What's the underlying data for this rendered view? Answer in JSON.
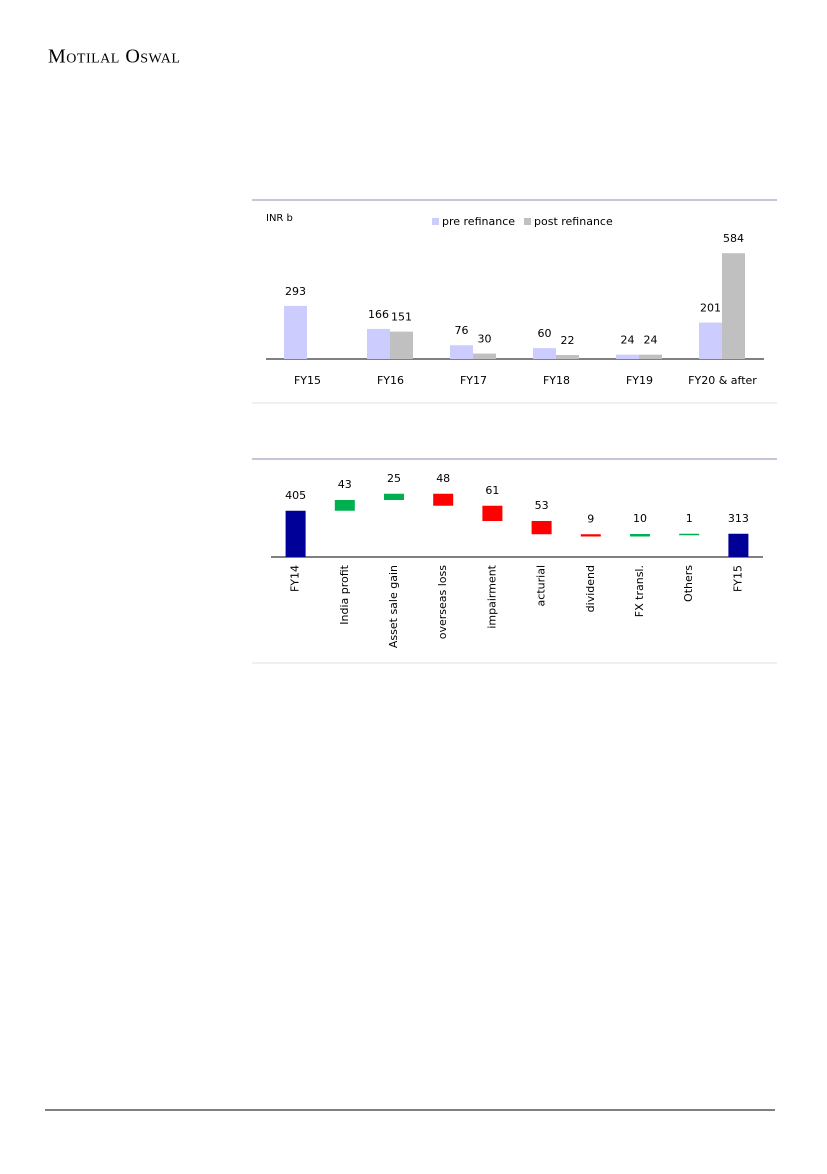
{
  "header": {
    "brand": "Motilal Oswal"
  },
  "chart_data": [
    {
      "type": "bar",
      "unit_label": "INR b",
      "categories": [
        "FY15",
        "FY16",
        "FY17",
        "FY18",
        "FY19",
        "FY20 & after"
      ],
      "series": [
        {
          "name": "pre refinance",
          "color": "#ccccff",
          "values": [
            293,
            166,
            76,
            60,
            24,
            201
          ]
        },
        {
          "name": "post refinance",
          "color": "#c0c0c0",
          "values": [
            null,
            151,
            30,
            22,
            24,
            584
          ]
        }
      ],
      "ylim": [
        0,
        850
      ]
    },
    {
      "type": "waterfall",
      "categories": [
        "FY14",
        "India profit",
        "Asset sale gain",
        "overseas loss",
        "impairment",
        "acturial",
        "dividend",
        "FX transl.",
        "Others",
        "FY15"
      ],
      "values": [
        405,
        43,
        25,
        -48,
        -61,
        -53,
        -9,
        10,
        1,
        313
      ],
      "value_labels": [
        "405",
        "43",
        "25",
        "48",
        "61",
        "53",
        "9",
        "10",
        "1",
        "313"
      ],
      "colors": {
        "total": "#000099",
        "increase": "#00b050",
        "decrease": "#ff0000"
      },
      "ylim": [
        220,
        600
      ]
    }
  ]
}
